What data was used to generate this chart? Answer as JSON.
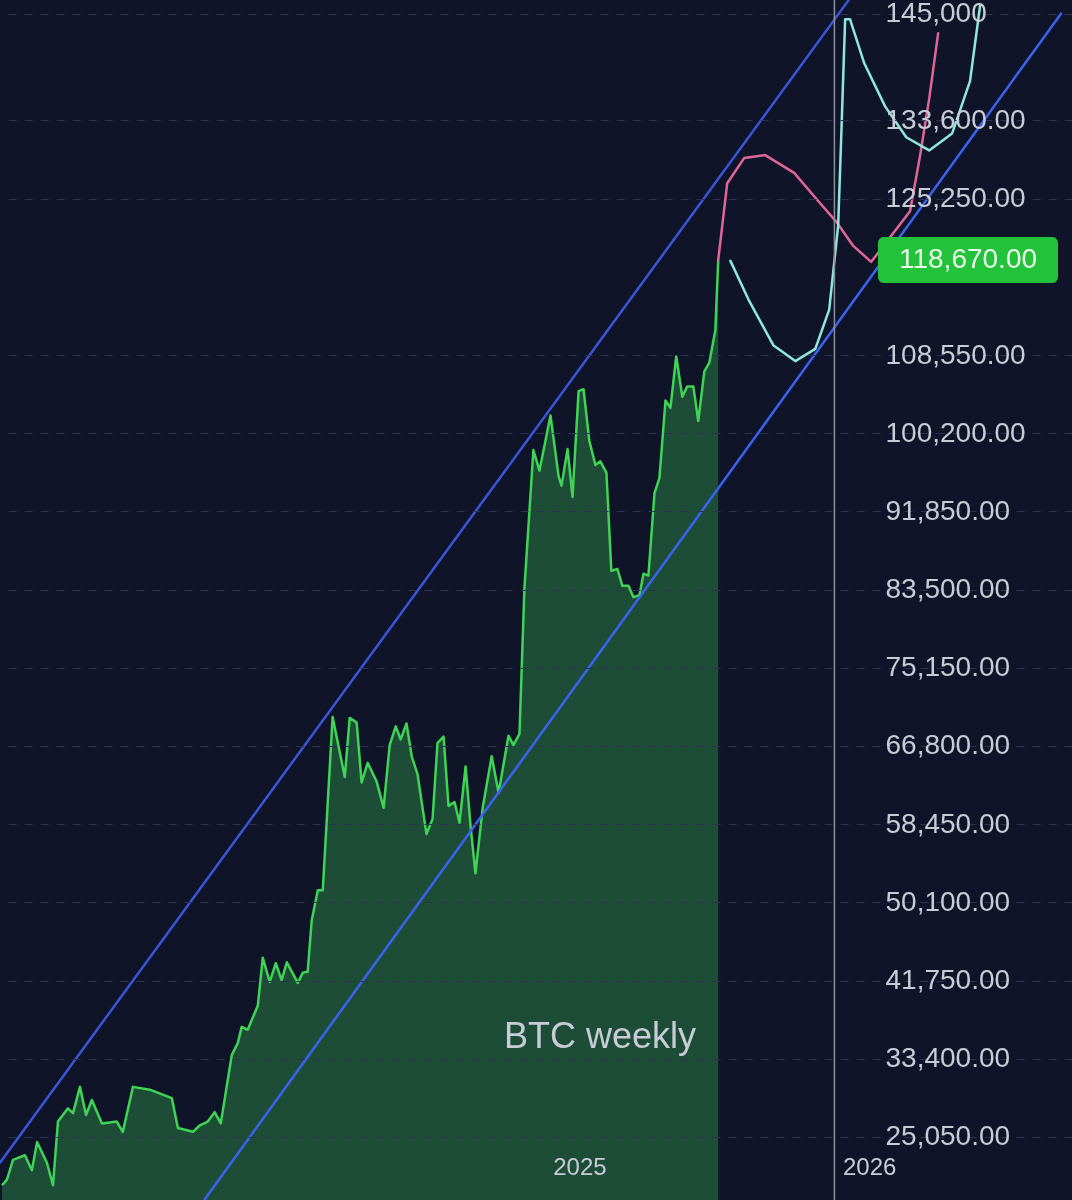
{
  "chart_data": {
    "type": "line",
    "xlim": [
      2023,
      2026.7
    ],
    "ylim": [
      18320,
      146460
    ],
    "xticks": [
      2025,
      2026
    ],
    "yticks": [
      {
        "value": 25050,
        "label": "25,050.00"
      },
      {
        "value": 33400,
        "label": "33,400.00"
      },
      {
        "value": 41750,
        "label": "41,750.00"
      },
      {
        "value": 50100,
        "label": "50,100.00"
      },
      {
        "value": 58450,
        "label": "58,450.00"
      },
      {
        "value": 66800,
        "label": "66,800.00"
      },
      {
        "value": 75150,
        "label": "75,150.00"
      },
      {
        "value": 83500,
        "label": "83,500.00"
      },
      {
        "value": 91850,
        "label": "91,850.00"
      },
      {
        "value": 100200,
        "label": "100,200.00"
      },
      {
        "value": 108550,
        "label": "108,550.00"
      },
      {
        "value": 125250,
        "label": "125,250.00"
      },
      {
        "value": 133600,
        "label": "133,600.00"
      },
      {
        "value": 145000,
        "label": "145,000"
      }
    ],
    "grid": "y",
    "series": [
      {
        "type": "area",
        "color": "#3fd455",
        "x": [
          2023.007,
          2023.024,
          2023.045,
          2023.086,
          2023.11,
          2023.128,
          2023.162,
          2023.183,
          2023.2,
          2023.234,
          2023.252,
          2023.276,
          2023.297,
          2023.317,
          2023.352,
          2023.403,
          2023.424,
          2023.459,
          2023.517,
          2023.593,
          2023.614,
          2023.666,
          2023.69,
          2023.717,
          2023.741,
          2023.762,
          2023.8,
          2023.821,
          2023.834,
          2023.855,
          2023.89,
          2023.907,
          2023.931,
          2023.952,
          2023.972,
          2023.99,
          2024.028,
          2024.045,
          2024.062,
          2024.076,
          2024.097,
          2024.114,
          2024.148,
          2024.19,
          2024.207,
          2024.231,
          2024.248,
          2024.269,
          2024.3,
          2024.324,
          2024.345,
          2024.366,
          2024.383,
          2024.403,
          2024.421,
          2024.441,
          2024.472,
          2024.493,
          2024.51,
          2024.531,
          2024.548,
          2024.569,
          2024.586,
          2024.607,
          2024.624,
          2024.641,
          2024.666,
          2024.697,
          2024.721,
          2024.755,
          2024.772,
          2024.793,
          2024.81,
          2024.841,
          2024.862,
          2024.9,
          2024.928,
          2024.938,
          2024.959,
          2024.976,
          2024.997,
          2025.014,
          2025.034,
          2025.055,
          2025.072,
          2025.093,
          2025.11,
          2025.131,
          2025.148,
          2025.169,
          2025.186,
          2025.207,
          2025.221,
          2025.238,
          2025.259,
          2025.276,
          2025.297,
          2025.314,
          2025.334,
          2025.355,
          2025.372,
          2025.393,
          2025.41,
          2025.431,
          2025.448,
          2025.469,
          2025.479
        ],
        "values": [
          19900,
          20500,
          22600,
          23100,
          21500,
          24500,
          22300,
          19900,
          26700,
          28100,
          27600,
          30400,
          27400,
          29000,
          26500,
          26700,
          25600,
          30400,
          30100,
          29200,
          26000,
          25600,
          26300,
          26700,
          27700,
          26500,
          33800,
          35100,
          36800,
          36500,
          39100,
          44200,
          41600,
          43600,
          41800,
          43700,
          41500,
          42600,
          42700,
          48200,
          51400,
          51400,
          69900,
          63500,
          69800,
          69300,
          62900,
          65000,
          63000,
          60200,
          66900,
          68900,
          67500,
          69200,
          65700,
          63800,
          57400,
          59000,
          67100,
          67800,
          60400,
          60800,
          58600,
          64600,
          58300,
          53200,
          60200,
          65700,
          61800,
          67900,
          66900,
          68100,
          83600,
          98400,
          96200,
          102100,
          95600,
          94600,
          98500,
          93400,
          104700,
          104900,
          99400,
          96800,
          97200,
          96000,
          85500,
          85700,
          83900,
          83900,
          82700,
          82900,
          85200,
          85000,
          93800,
          95400,
          103700,
          102900,
          108400,
          104100,
          105200,
          105200,
          101500,
          106800,
          107700,
          111200,
          118700
        ]
      },
      {
        "color": "#e0669a",
        "x": [
          2025.479,
          2025.51,
          2025.569,
          2025.641,
          2025.741,
          2025.824,
          2025.886,
          2025.945,
          2026.007,
          2026.055,
          2026.103,
          2026.141,
          2026.176,
          2026.207,
          2026.238
        ],
        "values": [
          118700,
          126900,
          129600,
          129900,
          128000,
          125000,
          122800,
          120200,
          118500,
          null,
          null,
          123900,
          129900,
          135900,
          142900
        ]
      },
      {
        "color": "#8ee8dc",
        "x": [
          2025.521,
          2025.583,
          2025.669,
          2025.745,
          2025.814,
          2025.862,
          2025.893,
          2025.903,
          2025.917,
          2025.934,
          2025.983,
          2026.055,
          2026.128,
          2026.207,
          2026.286,
          2026.348,
          2026.383
        ],
        "values": [
          118600,
          114500,
          109600,
          107900,
          109200,
          113400,
          122400,
          131400,
          144400,
          144400,
          139700,
          135100,
          131800,
          130400,
          132200,
          137800,
          145900
        ]
      },
      {
        "color": "#3b55d6",
        "x": [
          2023.0,
          2025.928
        ],
        "values": [
          22300,
          146400
        ]
      },
      {
        "color": "#3b63f0",
        "x": [
          2023.707,
          2026.662
        ],
        "values": [
          18400,
          145000
        ]
      }
    ],
    "ref_lines": [
      {
        "axis": "x",
        "value": 2025.88,
        "color": "#8a8f9c"
      }
    ],
    "annotations": [
      "118,670.00",
      "BTC weekly"
    ]
  }
}
